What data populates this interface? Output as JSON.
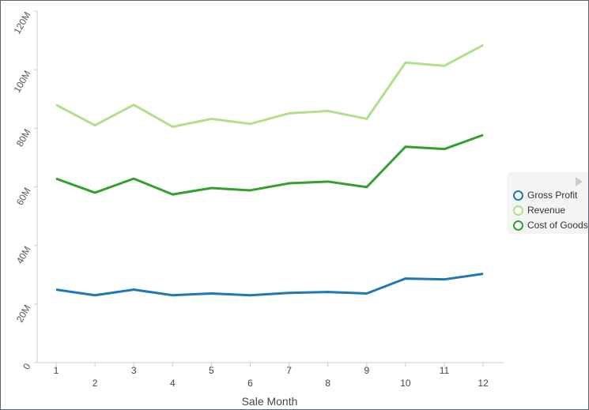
{
  "chart_data": {
    "type": "line",
    "xlabel": "Sale Month",
    "ylabel": "",
    "categories": [
      "1",
      "2",
      "3",
      "4",
      "5",
      "6",
      "7",
      "8",
      "9",
      "10",
      "11",
      "12"
    ],
    "ylim": [
      0,
      120000000
    ],
    "yticks": [
      "0",
      "20M",
      "40M",
      "60M",
      "80M",
      "100M",
      "120M"
    ],
    "grid": false,
    "legend_position": "right",
    "series": [
      {
        "name": "Gross Profit",
        "color": "#1f77b4",
        "values": [
          24.9,
          23.0,
          24.9,
          23.0,
          23.6,
          23.0,
          23.8,
          24.1,
          23.6,
          28.7,
          28.4,
          30.3
        ]
      },
      {
        "name": "Revenue",
        "color": "#b2df8a",
        "values": [
          88.0,
          81.0,
          88.0,
          80.5,
          83.2,
          81.5,
          85.1,
          85.9,
          83.2,
          102.4,
          101.3,
          108.4
        ]
      },
      {
        "name": "Cost of Goods",
        "color": "#33a02c",
        "values": [
          62.8,
          58.0,
          62.8,
          57.4,
          59.6,
          58.8,
          61.2,
          61.8,
          59.9,
          73.7,
          72.9,
          77.7
        ]
      }
    ],
    "value_unit": "M"
  }
}
